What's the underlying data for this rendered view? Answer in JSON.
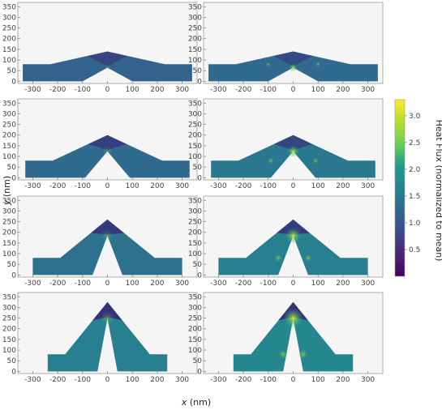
{
  "chart_data": {
    "type": "heatmap",
    "layout": {
      "rows": 4,
      "cols": 2
    },
    "xlabel": "x (nm)",
    "xlabel_var": "x",
    "xlabel_unit": "(nm)",
    "ylabel": "y (nm)",
    "ylabel_var": "y",
    "ylabel_unit": "(nm)",
    "xlim": [
      -360,
      360
    ],
    "ylim": [
      -10,
      370
    ],
    "x_ticks": [
      -300,
      -200,
      -100,
      0,
      100,
      200,
      300
    ],
    "y_ticks": [
      0,
      50,
      100,
      150,
      200,
      250,
      300,
      350
    ],
    "colorbar": {
      "label": "Heat Flux (normalized to mean)",
      "min": 0.0,
      "max": 3.3,
      "ticks": [
        0.5,
        1.0,
        1.5,
        2.0,
        2.5,
        3.0
      ],
      "tick_labels": [
        "0.5",
        "1.0",
        "1.5",
        "2.0",
        "2.5",
        "3.0"
      ],
      "colormap": "viridis"
    },
    "rows": [
      {
        "apex_y": 140,
        "half_width": 340,
        "left_panel_flux": 1.2,
        "right_panel_flux": 1.3
      },
      {
        "apex_y": 200,
        "half_width": 330,
        "left_panel_flux": 1.3,
        "right_panel_flux": 1.5
      },
      {
        "apex_y": 260,
        "half_width": 300,
        "left_panel_flux": 1.4,
        "right_panel_flux": 1.6
      },
      {
        "apex_y": 325,
        "half_width": 240,
        "left_panel_flux": 1.6,
        "right_panel_flux": 1.7
      }
    ]
  },
  "colors": {
    "panel_background": "#f5f5f5",
    "frame": "#9a9a9a",
    "low": "#3b0f70",
    "mid": "#2c7f8e",
    "high": "#fde725"
  }
}
